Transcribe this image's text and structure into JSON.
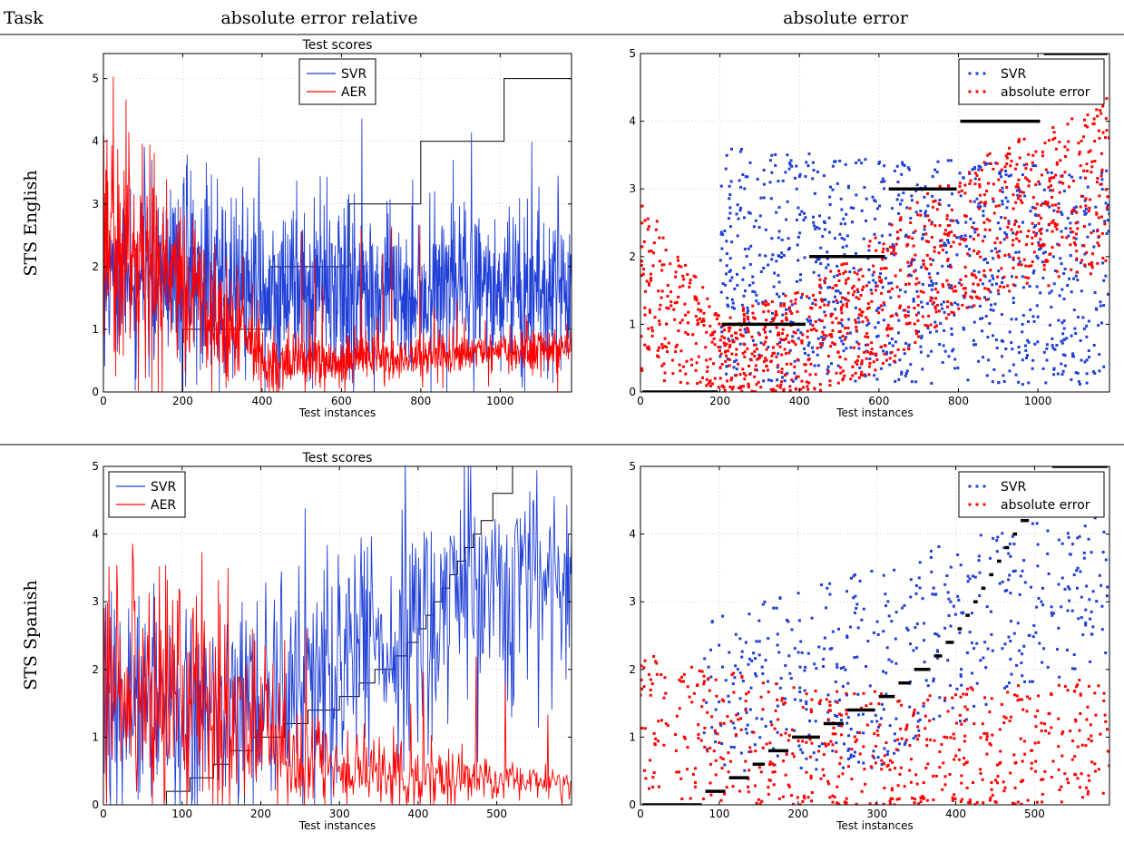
{
  "header": {
    "task": "Task",
    "col1": "absolute error relative",
    "col2": "absolute error"
  },
  "rows": [
    {
      "label": "STS English"
    },
    {
      "label": "STS Spanish"
    }
  ],
  "colors": {
    "svr": "#1f3fd6",
    "aer": "#ff0000",
    "gold": "#000000"
  },
  "chart_data": [
    {
      "type": "line",
      "title": "Test scores",
      "xlabel": "Test instances",
      "ylabel": "",
      "xlim": [
        0,
        1180
      ],
      "ylim": [
        0,
        5.4
      ],
      "xticks": [
        0,
        200,
        400,
        600,
        800,
        1000
      ],
      "yticks": [
        0,
        1,
        2,
        3,
        4,
        5
      ],
      "grid": true,
      "legend_position": "top-center",
      "legend": [
        "SVR",
        "AER"
      ],
      "n": 1180,
      "gold_steps": [
        {
          "x": [
            0,
            200
          ],
          "y": 0
        },
        {
          "x": [
            200,
            420
          ],
          "y": 1
        },
        {
          "x": [
            420,
            620
          ],
          "y": 2
        },
        {
          "x": [
            620,
            800
          ],
          "y": 3
        },
        {
          "x": [
            800,
            1010
          ],
          "y": 4
        },
        {
          "x": [
            1010,
            1180
          ],
          "y": 5
        }
      ],
      "series": [
        {
          "name": "SVR",
          "color": "#1f3fd6",
          "mean": [
            [
              0,
              1.8
            ],
            [
              200,
              1.8
            ],
            [
              450,
              1.6
            ],
            [
              800,
              1.6
            ],
            [
              1180,
              1.6
            ]
          ],
          "spread": [
            [
              0,
              0.7
            ],
            [
              200,
              1.1
            ],
            [
              600,
              0.9
            ],
            [
              1180,
              0.8
            ]
          ]
        },
        {
          "name": "AER",
          "color": "#ff0000",
          "mean": [
            [
              0,
              2.3
            ],
            [
              100,
              2.2
            ],
            [
              200,
              1.6
            ],
            [
              350,
              1.0
            ],
            [
              420,
              0.45
            ],
            [
              700,
              0.55
            ],
            [
              1180,
              0.7
            ]
          ],
          "spread": [
            [
              0,
              1.4
            ],
            [
              150,
              1.1
            ],
            [
              300,
              0.7
            ],
            [
              420,
              0.3
            ],
            [
              1180,
              0.2
            ]
          ]
        }
      ]
    },
    {
      "type": "scatter",
      "title": "",
      "xlabel": "Test instances",
      "ylabel": "",
      "xlim": [
        0,
        1180
      ],
      "ylim": [
        0,
        5
      ],
      "xticks": [
        0,
        200,
        400,
        600,
        800,
        1000
      ],
      "yticks": [
        0,
        1,
        2,
        3,
        4,
        5
      ],
      "grid": true,
      "legend_position": "top-right",
      "legend": [
        "SVR",
        "absolute error"
      ],
      "n": 1180,
      "gold_steps": [
        {
          "x": [
            0,
            200
          ],
          "y": 0
        },
        {
          "x": [
            200,
            420
          ],
          "y": 1
        },
        {
          "x": [
            420,
            620
          ],
          "y": 2
        },
        {
          "x": [
            620,
            800
          ],
          "y": 3
        },
        {
          "x": [
            800,
            1010
          ],
          "y": 4
        },
        {
          "x": [
            1010,
            1180
          ],
          "y": 5
        }
      ],
      "series": [
        {
          "name": "SVR",
          "color": "#1f3fd6",
          "mean": [
            [
              200,
              1.9
            ],
            [
              600,
              1.8
            ],
            [
              1180,
              1.7
            ]
          ],
          "spread": [
            [
              200,
              1.5
            ],
            [
              1180,
              1.4
            ]
          ]
        },
        {
          "name": "absolute error",
          "color": "#ff0000",
          "mean": [
            [
              0,
              1.6
            ],
            [
              200,
              0.6
            ],
            [
              420,
              0.7
            ],
            [
              620,
              1.4
            ],
            [
              800,
              2.2
            ],
            [
              1180,
              3.1
            ]
          ],
          "spread": [
            [
              0,
              1.2
            ],
            [
              200,
              0.5
            ],
            [
              620,
              0.9
            ],
            [
              1180,
              1.1
            ]
          ]
        }
      ]
    },
    {
      "type": "line",
      "title": "Test scores",
      "xlabel": "Test instances",
      "ylabel": "",
      "xlim": [
        0,
        595
      ],
      "ylim": [
        0,
        5
      ],
      "xticks": [
        0,
        100,
        200,
        300,
        400,
        500
      ],
      "yticks": [
        0,
        1,
        2,
        3,
        4,
        5
      ],
      "grid": true,
      "legend_position": "top-left",
      "legend": [
        "SVR",
        "AER"
      ],
      "n": 595,
      "gold_steps": [
        {
          "x": [
            0,
            80
          ],
          "y": 0
        },
        {
          "x": [
            80,
            110
          ],
          "y": 0.2
        },
        {
          "x": [
            110,
            140
          ],
          "y": 0.4
        },
        {
          "x": [
            140,
            160
          ],
          "y": 0.6
        },
        {
          "x": [
            160,
            190
          ],
          "y": 0.8
        },
        {
          "x": [
            190,
            230
          ],
          "y": 1.0
        },
        {
          "x": [
            230,
            260
          ],
          "y": 1.2
        },
        {
          "x": [
            260,
            300
          ],
          "y": 1.4
        },
        {
          "x": [
            300,
            325
          ],
          "y": 1.6
        },
        {
          "x": [
            325,
            345
          ],
          "y": 1.8
        },
        {
          "x": [
            345,
            370
          ],
          "y": 2.0
        },
        {
          "x": [
            370,
            385
          ],
          "y": 2.2
        },
        {
          "x": [
            385,
            400
          ],
          "y": 2.4
        },
        {
          "x": [
            400,
            410
          ],
          "y": 2.6
        },
        {
          "x": [
            410,
            420
          ],
          "y": 2.8
        },
        {
          "x": [
            420,
            430
          ],
          "y": 3.0
        },
        {
          "x": [
            430,
            440
          ],
          "y": 3.2
        },
        {
          "x": [
            440,
            450
          ],
          "y": 3.4
        },
        {
          "x": [
            450,
            460
          ],
          "y": 3.6
        },
        {
          "x": [
            460,
            470
          ],
          "y": 3.8
        },
        {
          "x": [
            470,
            480
          ],
          "y": 4.0
        },
        {
          "x": [
            480,
            495
          ],
          "y": 4.2
        },
        {
          "x": [
            495,
            520
          ],
          "y": 4.6
        },
        {
          "x": [
            520,
            595
          ],
          "y": 5.0
        }
      ],
      "series": [
        {
          "name": "SVR",
          "color": "#1f3fd6",
          "mean": [
            [
              0,
              1.4
            ],
            [
              180,
              1.4
            ],
            [
              300,
              2.2
            ],
            [
              420,
              2.8
            ],
            [
              595,
              3.4
            ]
          ],
          "spread": [
            [
              0,
              0.9
            ],
            [
              200,
              1.2
            ],
            [
              400,
              1.3
            ],
            [
              595,
              0.9
            ]
          ]
        },
        {
          "name": "AER",
          "color": "#ff0000",
          "mean": [
            [
              0,
              1.6
            ],
            [
              150,
              1.4
            ],
            [
              250,
              0.6
            ],
            [
              320,
              0.5
            ],
            [
              595,
              0.3
            ]
          ],
          "spread": [
            [
              0,
              1.4
            ],
            [
              150,
              1.2
            ],
            [
              250,
              0.5
            ],
            [
              595,
              0.15
            ]
          ]
        }
      ]
    },
    {
      "type": "scatter",
      "title": "",
      "xlabel": "Test instances",
      "ylabel": "",
      "xlim": [
        0,
        595
      ],
      "ylim": [
        0,
        5
      ],
      "xticks": [
        0,
        100,
        200,
        300,
        400,
        500
      ],
      "yticks": [
        0,
        1,
        2,
        3,
        4,
        5
      ],
      "grid": true,
      "legend_position": "top-right",
      "legend": [
        "SVR",
        "absolute error"
      ],
      "n": 595,
      "gold_steps": [
        {
          "x": [
            0,
            80
          ],
          "y": 0
        },
        {
          "x": [
            80,
            110
          ],
          "y": 0.2
        },
        {
          "x": [
            110,
            140
          ],
          "y": 0.4
        },
        {
          "x": [
            140,
            160
          ],
          "y": 0.6
        },
        {
          "x": [
            160,
            190
          ],
          "y": 0.8
        },
        {
          "x": [
            190,
            230
          ],
          "y": 1.0
        },
        {
          "x": [
            230,
            260
          ],
          "y": 1.2
        },
        {
          "x": [
            260,
            300
          ],
          "y": 1.4
        },
        {
          "x": [
            300,
            325
          ],
          "y": 1.6
        },
        {
          "x": [
            325,
            345
          ],
          "y": 1.8
        },
        {
          "x": [
            345,
            370
          ],
          "y": 2.0
        },
        {
          "x": [
            370,
            385
          ],
          "y": 2.2
        },
        {
          "x": [
            385,
            400
          ],
          "y": 2.4
        },
        {
          "x": [
            400,
            410
          ],
          "y": 2.6
        },
        {
          "x": [
            410,
            420
          ],
          "y": 2.8
        },
        {
          "x": [
            420,
            430
          ],
          "y": 3.0
        },
        {
          "x": [
            430,
            440
          ],
          "y": 3.2
        },
        {
          "x": [
            440,
            450
          ],
          "y": 3.4
        },
        {
          "x": [
            450,
            460
          ],
          "y": 3.6
        },
        {
          "x": [
            460,
            470
          ],
          "y": 3.8
        },
        {
          "x": [
            470,
            480
          ],
          "y": 4.0
        },
        {
          "x": [
            480,
            495
          ],
          "y": 4.2
        },
        {
          "x": [
            495,
            520
          ],
          "y": 4.6
        },
        {
          "x": [
            520,
            595
          ],
          "y": 5.0
        }
      ],
      "series": [
        {
          "name": "SVR",
          "color": "#1f3fd6",
          "mean": [
            [
              80,
              1.6
            ],
            [
              300,
              2.0
            ],
            [
              450,
              2.8
            ],
            [
              595,
              3.3
            ]
          ],
          "spread": [
            [
              80,
              1.0
            ],
            [
              300,
              1.3
            ],
            [
              595,
              1.0
            ]
          ]
        },
        {
          "name": "absolute error",
          "color": "#ff0000",
          "mean": [
            [
              0,
              1.2
            ],
            [
              200,
              0.8
            ],
            [
              400,
              0.8
            ],
            [
              595,
              1.0
            ]
          ],
          "spread": [
            [
              0,
              0.9
            ],
            [
              300,
              0.8
            ],
            [
              595,
              0.8
            ]
          ]
        }
      ]
    }
  ]
}
